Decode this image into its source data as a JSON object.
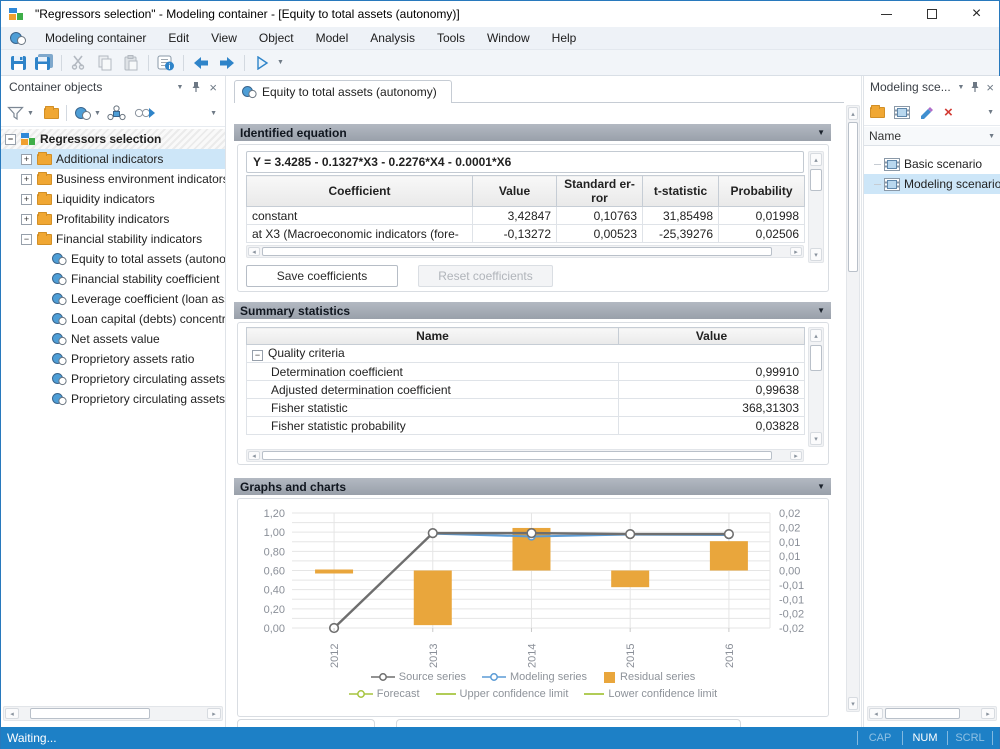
{
  "window": {
    "title": "\"Regressors selection\" - Modeling container - [Equity to total assets (autonomy)]"
  },
  "menubar": {
    "items": [
      "Modeling container",
      "Edit",
      "View",
      "Object",
      "Model",
      "Analysis",
      "Tools",
      "Window",
      "Help"
    ]
  },
  "toolbar": {
    "icons": [
      "save",
      "save-all",
      "cut",
      "copy",
      "paste",
      "properties",
      "back",
      "forward",
      "run"
    ]
  },
  "left_panel": {
    "title": "Container objects",
    "toolbar_icons": [
      "filter",
      "folder",
      "model",
      "diagram",
      "link-run"
    ],
    "tree": {
      "root": "Regressors selection",
      "folders": [
        {
          "label": "Additional indicators",
          "selected": true,
          "expanded": false
        },
        {
          "label": "Business environment indicators",
          "selected": false,
          "expanded": false
        },
        {
          "label": "Liquidity indicators",
          "selected": false,
          "expanded": false
        },
        {
          "label": "Profitability indicators",
          "selected": false,
          "expanded": false
        },
        {
          "label": "Financial stability indicators",
          "selected": false,
          "expanded": true,
          "children": [
            "Equity to total assets (autono",
            "Financial stability coefficient",
            "Leverage coefficient (loan ass",
            "Loan capital (debts) concentra",
            "Net assets value",
            "Proprietory assets ratio",
            "Proprietory circulating assets",
            "Proprietory circulating assets"
          ]
        }
      ]
    }
  },
  "main": {
    "tab": "Equity to total assets (autonomy)",
    "equation": {
      "title": "Identified equation",
      "formula": "Y = 3.4285 - 0.1327*X3 - 0.2276*X4 - 0.0001*X6",
      "columns": [
        "Coefficient",
        "Value",
        "Standard er-ror",
        "t-statistic",
        "Probability"
      ],
      "rows": [
        {
          "name": "constant",
          "value": "3,42847",
          "std_error": "0,10763",
          "t_stat": "31,85498",
          "probability": "0,01998"
        },
        {
          "name": "at X3 (Macroeconomic indicators (fore-",
          "value": "-0,13272",
          "std_error": "0,00523",
          "t_stat": "-25,39276",
          "probability": "0,02506"
        }
      ],
      "save_button": "Save coefficients",
      "reset_button": "Reset coefficients"
    },
    "summary": {
      "title": "Summary statistics",
      "columns": [
        "Name",
        "Value"
      ],
      "group": "Quality criteria",
      "rows": [
        [
          "Determination coefficient",
          "0,99910"
        ],
        [
          "Adjusted determination coefficient",
          "0,99638"
        ],
        [
          "Fisher statistic",
          "368,31303"
        ],
        [
          "Fisher statistic probability",
          "0,03828"
        ]
      ]
    },
    "charts_title": "Graphs and charts"
  },
  "chart_data": {
    "type": "line",
    "combo": "line+bar",
    "x": [
      "2012",
      "2013",
      "2014",
      "2015",
      "2016"
    ],
    "series": [
      {
        "name": "Source series",
        "kind": "line",
        "axis": "left",
        "color": "#6e6e6e",
        "values": [
          0.0,
          0.99,
          0.99,
          0.98,
          0.98
        ]
      },
      {
        "name": "Modeling series",
        "kind": "line",
        "axis": "left",
        "color": "#5b9bd5",
        "values": [
          null,
          0.985,
          0.955,
          0.975,
          0.97
        ]
      },
      {
        "name": "Residual series",
        "kind": "bar",
        "axis": "right",
        "color": "#e9a63c",
        "values": [
          -0.0004,
          -0.019,
          0.0148,
          -0.0058,
          0.0102
        ]
      },
      {
        "name": "Forecast",
        "kind": "line",
        "axis": "left",
        "color": "#a6c43f",
        "values": [
          null,
          null,
          null,
          null,
          null
        ]
      },
      {
        "name": "Upper confidence limit",
        "kind": "line",
        "axis": "left",
        "color": "#a6c43f",
        "values": [
          null,
          null,
          null,
          null,
          null
        ]
      },
      {
        "name": "Lower confidence limit",
        "kind": "line",
        "axis": "left",
        "color": "#a6c43f",
        "values": [
          null,
          null,
          null,
          null,
          null
        ]
      }
    ],
    "left_axis": {
      "min": 0,
      "max": 1.2,
      "tick_labels": [
        "1,20",
        "1,00",
        "0,80",
        "0,60",
        "0,40",
        "0,20",
        "0,00"
      ]
    },
    "right_axis": {
      "min": -0.02,
      "max": 0.02,
      "tick_labels": [
        "0,02",
        "0,02",
        "0,01",
        "0,01",
        "0,00",
        "-0,01",
        "-0,01",
        "-0,02",
        "-0,02"
      ]
    },
    "grid": true,
    "legend_position": "bottom",
    "legend_rows": [
      [
        "Source series",
        "Modeling series",
        "Residual series"
      ],
      [
        "Forecast",
        "Upper confidence limit",
        "Lower confidence limit"
      ]
    ]
  },
  "right_panel": {
    "title": "Modeling sce...",
    "toolbar_icons": [
      "folder",
      "scenario",
      "edit",
      "delete"
    ],
    "column": "Name",
    "items": [
      {
        "label": "Basic scenario",
        "selected": false
      },
      {
        "label": "Modeling scenario",
        "selected": true
      }
    ]
  },
  "status_bar": {
    "text": "Waiting...",
    "indicators": [
      {
        "label": "CAP",
        "active": false
      },
      {
        "label": "NUM",
        "active": true
      },
      {
        "label": "SCRL",
        "active": false
      }
    ]
  }
}
